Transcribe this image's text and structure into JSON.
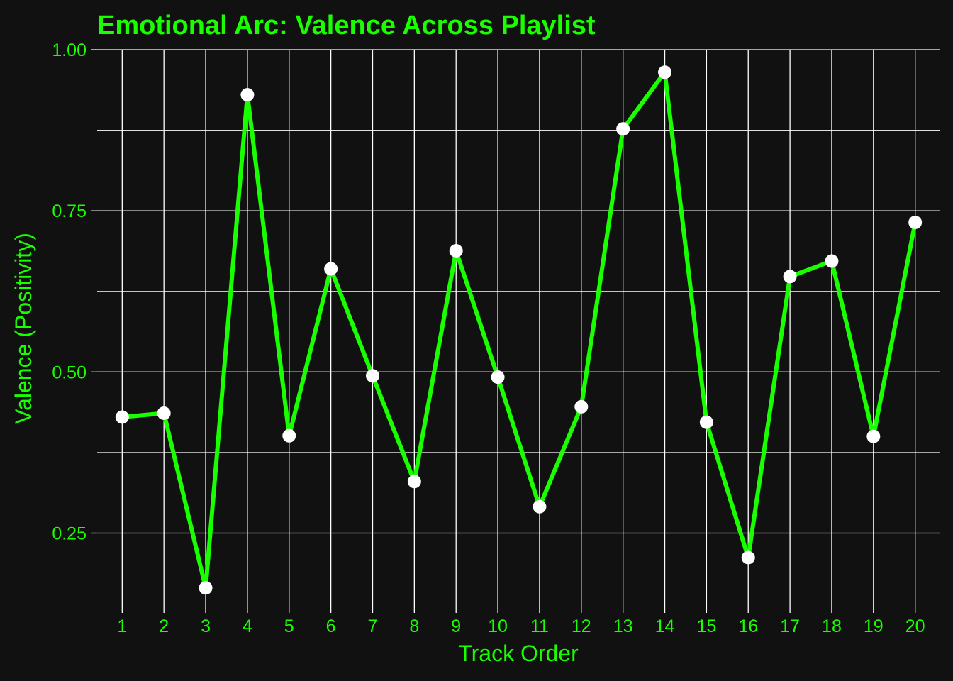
{
  "chart_data": {
    "type": "line",
    "title": "Emotional Arc: Valence Across Playlist",
    "xlabel": "Track Order",
    "ylabel": "Valence (Positivity)",
    "x": [
      1,
      2,
      3,
      4,
      5,
      6,
      7,
      8,
      9,
      10,
      11,
      12,
      13,
      14,
      15,
      16,
      17,
      18,
      19,
      20
    ],
    "y": [
      0.43,
      0.436,
      0.165,
      0.93,
      0.401,
      0.66,
      0.494,
      0.33,
      0.688,
      0.492,
      0.291,
      0.446,
      0.877,
      0.965,
      0.422,
      0.212,
      0.648,
      0.672,
      0.4,
      0.732
    ],
    "xlim": [
      0.4,
      20.6
    ],
    "ylim": [
      0.135,
      1.0
    ],
    "yticks": [
      "0.25",
      "0.50",
      "0.75",
      "1.00"
    ],
    "grid": true,
    "colors": {
      "background": "#111111",
      "line": "#1aff00",
      "points": "#ffffff",
      "grid": "#ffffff",
      "text": "#1aff00"
    }
  }
}
